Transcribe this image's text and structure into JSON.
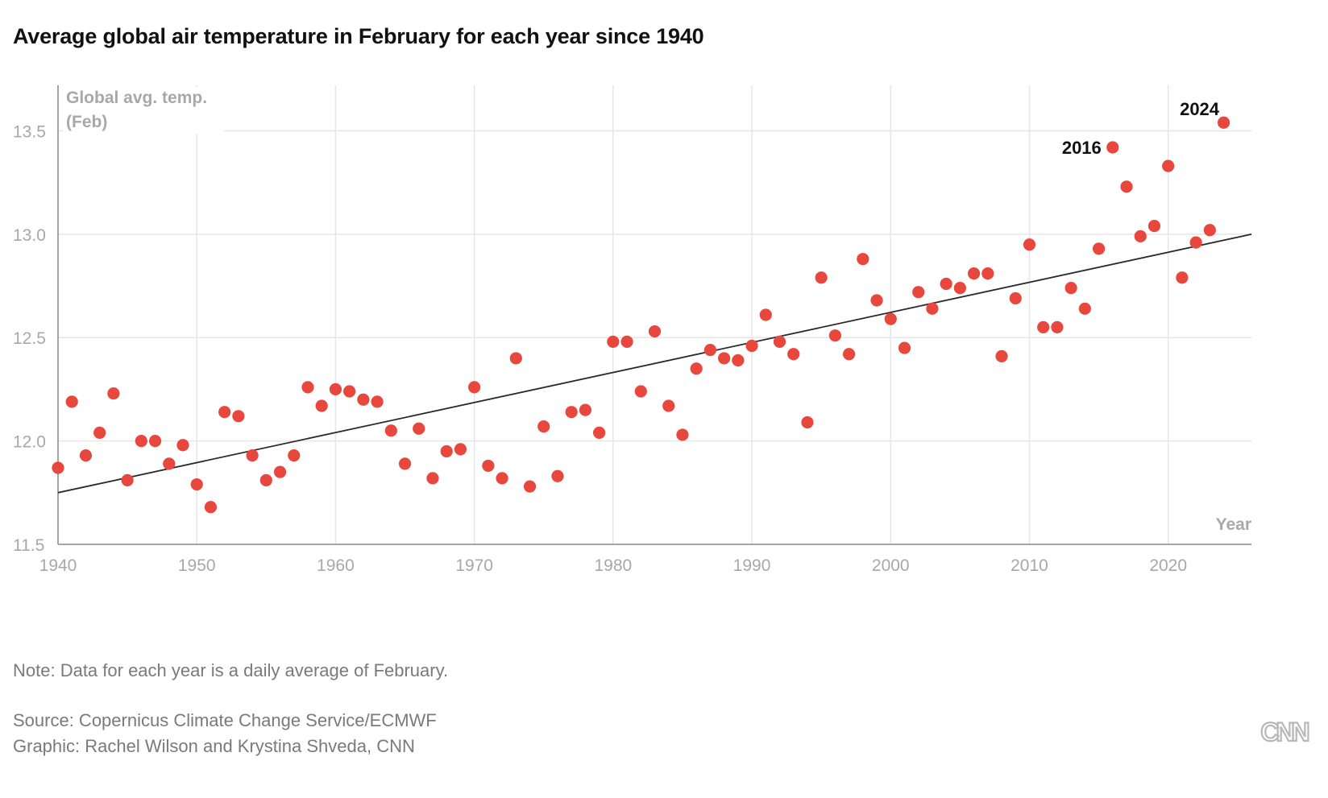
{
  "title": "Average global air temperature in February for each year since 1940",
  "note": "Note: Data for each year is a daily average of February.",
  "source": "Source: Copernicus Climate Change Service/ECMWF",
  "credit": "Graphic: Rachel Wilson and Krystina Shveda, CNN",
  "logo_text": "CNN",
  "colors": {
    "point": "#e8473e",
    "trend": "#2a2a2a",
    "grid": "#e6e6e6",
    "axis": "#9a9a9a",
    "tick_text": "#a8a8a8",
    "annotation": "#111111"
  },
  "chart_data": {
    "type": "scatter",
    "ylabel": [
      "Global avg. temp.",
      "(Feb)"
    ],
    "xlabel": "Year",
    "xlim": [
      1940,
      2026
    ],
    "ylim": [
      11.5,
      13.72
    ],
    "grid": true,
    "x_ticks": [
      1940,
      1950,
      1960,
      1970,
      1980,
      1990,
      2000,
      2010,
      2020
    ],
    "y_ticks": [
      11.5,
      12.0,
      12.5,
      13.0,
      13.5
    ],
    "y_tick_labels": [
      "11.5",
      "12.0",
      "12.5",
      "13.0",
      "13.5"
    ],
    "x": [
      1940,
      1941,
      1942,
      1943,
      1944,
      1945,
      1946,
      1947,
      1948,
      1949,
      1950,
      1951,
      1952,
      1953,
      1954,
      1955,
      1956,
      1957,
      1958,
      1959,
      1960,
      1961,
      1962,
      1963,
      1964,
      1965,
      1966,
      1967,
      1968,
      1969,
      1970,
      1971,
      1972,
      1973,
      1974,
      1975,
      1976,
      1977,
      1978,
      1979,
      1980,
      1981,
      1982,
      1983,
      1984,
      1985,
      1986,
      1987,
      1988,
      1989,
      1990,
      1991,
      1992,
      1993,
      1994,
      1995,
      1996,
      1997,
      1998,
      1999,
      2000,
      2001,
      2002,
      2003,
      2004,
      2005,
      2006,
      2007,
      2008,
      2009,
      2010,
      2011,
      2012,
      2013,
      2014,
      2015,
      2016,
      2017,
      2018,
      2019,
      2020,
      2021,
      2022,
      2023,
      2024
    ],
    "y": [
      11.87,
      12.19,
      11.93,
      12.04,
      12.23,
      11.81,
      12.0,
      12.0,
      11.89,
      11.98,
      11.79,
      11.68,
      12.14,
      12.12,
      11.93,
      11.81,
      11.85,
      11.93,
      12.26,
      12.17,
      12.25,
      12.24,
      12.2,
      12.19,
      12.05,
      11.89,
      12.06,
      11.82,
      11.95,
      11.96,
      12.26,
      11.88,
      11.82,
      12.4,
      11.78,
      12.07,
      11.83,
      12.14,
      12.15,
      12.04,
      12.48,
      12.48,
      12.24,
      12.53,
      12.17,
      12.03,
      12.35,
      12.44,
      12.4,
      12.39,
      12.46,
      12.61,
      12.48,
      12.42,
      12.09,
      12.79,
      12.51,
      12.42,
      12.88,
      12.68,
      12.59,
      12.45,
      12.72,
      12.64,
      12.76,
      12.74,
      12.81,
      12.81,
      12.41,
      12.69,
      12.95,
      12.55,
      12.55,
      12.74,
      12.64,
      12.93,
      13.42,
      13.23,
      12.99,
      13.04,
      13.33,
      12.79,
      12.96,
      13.02,
      13.54
    ],
    "trendline": {
      "x": [
        1940,
        2026
      ],
      "y": [
        11.75,
        13.0
      ]
    },
    "annotations": [
      {
        "x": 2016,
        "y": 13.42,
        "label": "2016",
        "anchor": "left"
      },
      {
        "x": 2024,
        "y": 13.54,
        "label": "2024",
        "anchor": "above"
      }
    ]
  }
}
